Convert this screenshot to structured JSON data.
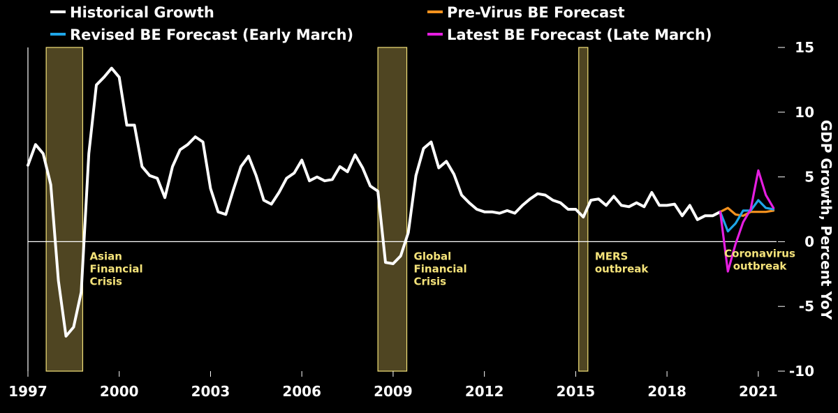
{
  "chart_data": {
    "type": "line",
    "title": "",
    "xlabel": "",
    "ylabel": "GDP Growth, Percent YoY",
    "ylim": [
      -10,
      15
    ],
    "xlim": [
      1997,
      2021.6
    ],
    "y_ticks": [
      15,
      10,
      5,
      0,
      -5,
      -10
    ],
    "x_ticks": [
      1997,
      2000,
      2003,
      2006,
      2009,
      2012,
      2015,
      2018,
      2021
    ],
    "legend": [
      "Historical Growth",
      "Pre-Virus BE Forecast",
      "Revised BE Forecast (Early March)",
      "Latest BE Forecast (Late March)"
    ],
    "colors": {
      "historical": "#ffffff",
      "pre_virus": "#f5921e",
      "revised": "#1fa6e8",
      "latest": "#e51ee0",
      "shade_fill": "#4f4522",
      "shade_stroke": "#f5e37a",
      "annotation": "#f5e37a"
    },
    "shaded_periods": [
      {
        "name": "Asian Financial Crisis",
        "start": 1997.6,
        "end": 1998.8,
        "lines": [
          "Asian",
          "Financial",
          "Crisis"
        ]
      },
      {
        "name": "Global Financial Crisis",
        "start": 2008.5,
        "end": 2009.45,
        "lines": [
          "Global",
          "Financial",
          "Crisis"
        ]
      },
      {
        "name": "MERS outbreak",
        "start": 2015.1,
        "end": 2015.4,
        "lines": [
          "MERS",
          "outbreak"
        ]
      }
    ],
    "annotations": [
      {
        "name": "Coronavirus outbreak",
        "x": 2021.05,
        "y": -1.2,
        "lines": [
          "Coronavirus",
          "outbreak"
        ]
      }
    ],
    "series": [
      {
        "name": "Historical Growth",
        "key": "historical",
        "x": [
          1997.0,
          1997.25,
          1997.5,
          1997.75,
          1998.0,
          1998.25,
          1998.5,
          1998.75,
          1999.0,
          1999.25,
          1999.5,
          1999.75,
          2000.0,
          2000.25,
          2000.5,
          2000.75,
          2001.0,
          2001.25,
          2001.5,
          2001.75,
          2002.0,
          2002.25,
          2002.5,
          2002.75,
          2003.0,
          2003.25,
          2003.5,
          2003.75,
          2004.0,
          2004.25,
          2004.5,
          2004.75,
          2005.0,
          2005.25,
          2005.5,
          2005.75,
          2006.0,
          2006.25,
          2006.5,
          2006.75,
          2007.0,
          2007.25,
          2007.5,
          2007.75,
          2008.0,
          2008.25,
          2008.5,
          2008.75,
          2009.0,
          2009.25,
          2009.5,
          2009.75,
          2010.0,
          2010.25,
          2010.5,
          2010.75,
          2011.0,
          2011.25,
          2011.5,
          2011.75,
          2012.0,
          2012.25,
          2012.5,
          2012.75,
          2013.0,
          2013.25,
          2013.5,
          2013.75,
          2014.0,
          2014.25,
          2014.5,
          2014.75,
          2015.0,
          2015.25,
          2015.5,
          2015.75,
          2016.0,
          2016.25,
          2016.5,
          2016.75,
          2017.0,
          2017.25,
          2017.5,
          2017.75,
          2018.0,
          2018.25,
          2018.5,
          2018.75,
          2019.0,
          2019.25,
          2019.5,
          2019.75
        ],
        "values": [
          5.9,
          7.5,
          6.8,
          4.4,
          -3.0,
          -7.3,
          -6.6,
          -3.9,
          6.8,
          12.1,
          12.7,
          13.4,
          12.7,
          9.0,
          9.0,
          5.8,
          5.1,
          4.9,
          3.4,
          5.8,
          7.1,
          7.5,
          8.1,
          7.7,
          4.1,
          2.3,
          2.1,
          4.0,
          5.8,
          6.6,
          5.1,
          3.2,
          2.9,
          3.8,
          4.9,
          5.3,
          6.3,
          4.7,
          5.0,
          4.7,
          4.8,
          5.8,
          5.4,
          6.7,
          5.7,
          4.3,
          3.9,
          -1.6,
          -1.7,
          -1.1,
          0.7,
          5.1,
          7.2,
          7.7,
          5.7,
          6.2,
          5.2,
          3.6,
          3.0,
          2.5,
          2.3,
          2.3,
          2.2,
          2.4,
          2.2,
          2.8,
          3.3,
          3.7,
          3.6,
          3.2,
          3.0,
          2.5,
          2.5,
          1.9,
          3.2,
          3.3,
          2.8,
          3.5,
          2.8,
          2.7,
          3.0,
          2.7,
          3.8,
          2.8,
          2.8,
          2.9,
          2.0,
          2.8,
          1.7,
          2.0,
          2.0,
          2.3
        ]
      },
      {
        "name": "Pre-Virus BE Forecast",
        "key": "pre_virus",
        "x": [
          2019.75,
          2020.0,
          2020.25,
          2020.5,
          2020.75,
          2021.0,
          2021.25,
          2021.5
        ],
        "values": [
          2.3,
          2.6,
          2.1,
          2.0,
          2.3,
          2.3,
          2.3,
          2.4
        ]
      },
      {
        "name": "Revised BE Forecast (Early March)",
        "key": "revised",
        "x": [
          2019.75,
          2020.0,
          2020.25,
          2020.5,
          2020.75,
          2021.0,
          2021.25,
          2021.5
        ],
        "values": [
          2.3,
          0.8,
          1.4,
          2.4,
          2.4,
          3.2,
          2.6,
          2.5
        ]
      },
      {
        "name": "Latest BE Forecast (Late March)",
        "key": "latest",
        "x": [
          2019.75,
          2020.0,
          2020.25,
          2020.5,
          2020.75,
          2021.0,
          2021.25,
          2021.5
        ],
        "values": [
          2.3,
          -2.3,
          -0.2,
          1.5,
          2.5,
          5.5,
          3.6,
          2.6
        ]
      }
    ]
  }
}
